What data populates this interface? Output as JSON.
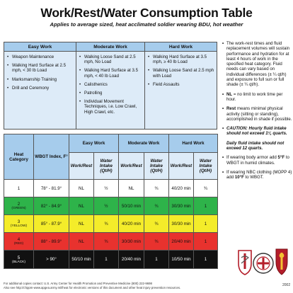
{
  "title": "Work/Rest/Water Consumption Table",
  "subtitle": "Applies to average sized, heat acclimated soldier wearing BDU, hot weather",
  "activities": {
    "easy": {
      "label": "Easy Work",
      "items": [
        "Weapon Maintenance",
        "Walking Hard Surface at 2.5 mph, < 30 lb Load",
        "Marksmanship Training",
        "Drill and Ceremony"
      ]
    },
    "moderate": {
      "label": "Moderate Work",
      "items": [
        "Walking Loose Sand at 2.5 mph, No Load",
        "Walking Hard Surface at 3.5 mph, < 40 lb Load",
        "Calisthenics",
        "Patrolling",
        "Individual Movement Techniques, i.e. Low Crawl, High Crawl, etc."
      ]
    },
    "hard": {
      "label": "Hard Work",
      "items": [
        "Walking Hard Surface at 3.5 mph, ≥ 40 lb Load",
        "Walking Loose Sand at 2.5 mph with Load",
        "Field Assaults"
      ]
    }
  },
  "heat_table": {
    "col_heat": "Heat Category",
    "col_wbgt": "WBGT Index, F°",
    "groups": [
      "Easy Work",
      "Moderate Work",
      "Hard Work"
    ],
    "sub_work": "Work/Rest",
    "sub_water": "Water Intake (Qt/H)",
    "rows": [
      {
        "cat": "1",
        "catname": "",
        "wbgt": "78° - 81.9°",
        "e_w": "NL",
        "e_q": "½",
        "m_w": "NL",
        "m_q": "¾",
        "h_w": "40/20 min",
        "h_q": "¾",
        "color": "#ffffff"
      },
      {
        "cat": "2",
        "catname": "(GREEN)",
        "wbgt": "82° - 84.9°",
        "e_w": "NL",
        "e_q": "½",
        "m_w": "50/10 min",
        "m_q": "¾",
        "h_w": "30/30 min",
        "h_q": "1",
        "color": "#2eb34a"
      },
      {
        "cat": "3",
        "catname": "(YELLOW)",
        "wbgt": "85° - 87.9°",
        "e_w": "NL",
        "e_q": "¾",
        "m_w": "40/20 min",
        "m_q": "¾",
        "h_w": "30/30 min",
        "h_q": "1",
        "color": "#f4ec2a"
      },
      {
        "cat": "4",
        "catname": "(RED)",
        "wbgt": "88° - 89.9°",
        "e_w": "NL",
        "e_q": "¾",
        "m_w": "30/30 min",
        "m_q": "¾",
        "h_w": "20/40 min",
        "h_q": "1",
        "color": "#e8322e"
      },
      {
        "cat": "5",
        "catname": "(BLACK)",
        "wbgt": "> 90°",
        "e_w": "50/10 min",
        "e_q": "1",
        "m_w": "20/40 min",
        "m_q": "1",
        "h_w": "10/50 min",
        "h_q": "1",
        "color": "#111111"
      }
    ]
  },
  "notes": {
    "n1": "The work-rest times and fluid replacement volumes will sustain performance and hydration for at least 4 hours of work in the specified heat category. Fluid needs can vary based on individual differences (± ¼ qt/h) and exposure to full sun or full shade (± ¼ qt/h).",
    "n2_b": "NL",
    "n2": " = no limit to work time per hour.",
    "n3_b": "Rest",
    "n3": " means minimal physical activity (sitting or standing), accomplished in shade if possible.",
    "n4": "CAUTION: Hourly fluid intake should not exceed 1¼ quarts.",
    "n5": "Daily fluid intake should not exceed 12 quarts.",
    "n6a": "If wearing body armor add ",
    "n6b": "5°F",
    "n6c": " to WBGT in humid climates.",
    "n7a": "If wearing NBC clothing (MOPP 4) add ",
    "n7b": "10°F",
    "n7c": " to WBGT."
  },
  "footer": {
    "line1": "For additional copies contact: U.S. Army Center for Health Promotion and Preventive Medicine (800) 222-9698",
    "line2": "Also see http://chppm-www.apgea.army.mil/heat for electronic versions of this document and other heat injury prevention resources.",
    "year": "2002"
  }
}
